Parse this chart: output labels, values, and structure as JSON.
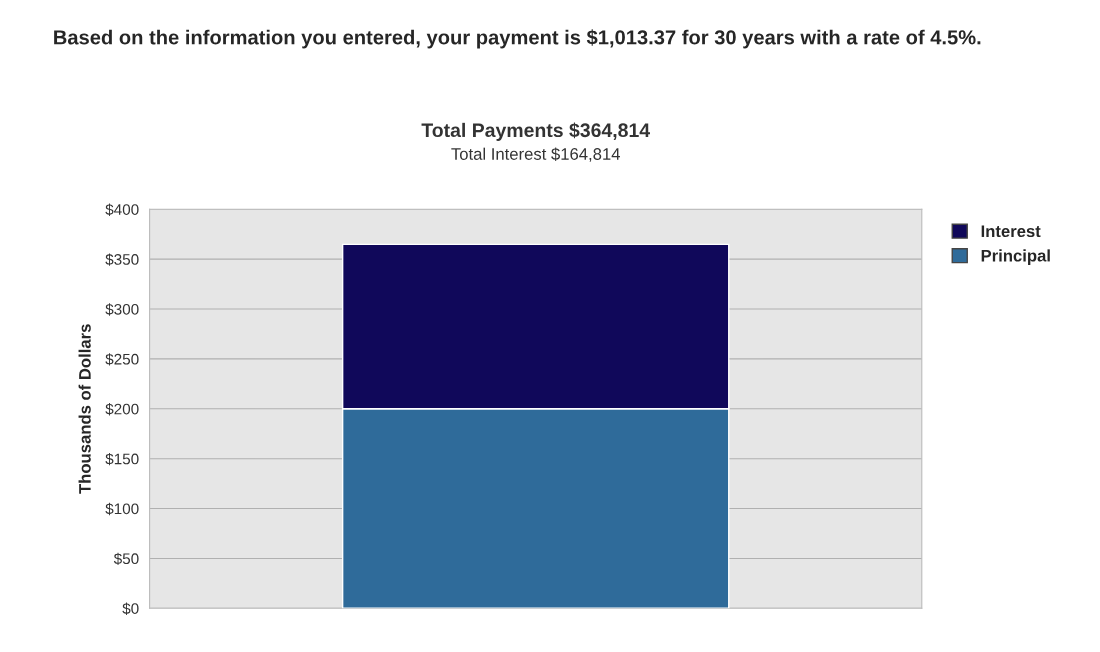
{
  "chart_data": {
    "type": "bar",
    "title": "Total Payments $364,814",
    "subtitle": "Total Interest $164,814",
    "ylabel": "Thousands of Dollars",
    "annotations": [
      "Based on the information you entered, your payment is $1,013.37 for 30 years with a rate of 4.5%."
    ],
    "categories": [
      null
    ],
    "stacked": true,
    "series": [
      {
        "name": "Principal",
        "color": "#2f6b9a",
        "values": [
          200
        ]
      },
      {
        "name": "Interest",
        "color": "#10085a",
        "values": [
          164.814
        ]
      }
    ],
    "ylim": [
      0,
      400
    ],
    "yticks": [
      {
        "value": 0,
        "label": "$0"
      },
      {
        "value": 50,
        "label": "$50"
      },
      {
        "value": 100,
        "label": "$100"
      },
      {
        "value": 150,
        "label": "$150"
      },
      {
        "value": 200,
        "label": "$200"
      },
      {
        "value": 250,
        "label": "$250"
      },
      {
        "value": 300,
        "label": "$300"
      },
      {
        "value": 350,
        "label": "$350"
      },
      {
        "value": 400,
        "label": "$400"
      }
    ],
    "grid": "y",
    "legend": "top right"
  }
}
